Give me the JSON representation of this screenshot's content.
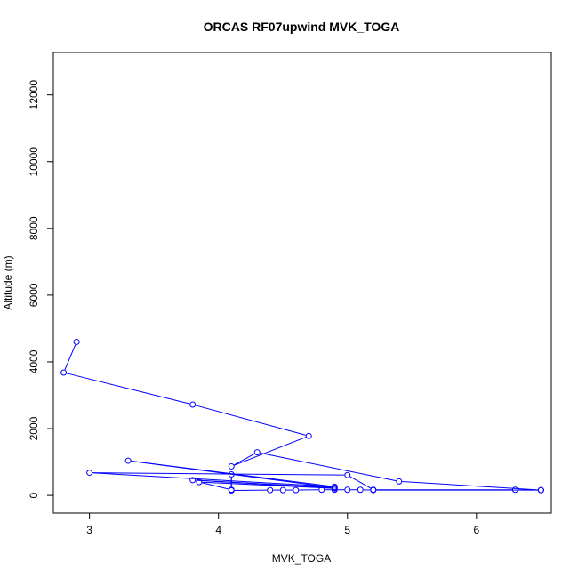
{
  "chart_data": {
    "type": "line",
    "title": "ORCAS RF07upwind MVK_TOGA",
    "xlabel": "MVK_TOGA",
    "ylabel": "Altitude (m)",
    "xlim": [
      2.72,
      6.58
    ],
    "ylim": [
      -530,
      13270
    ],
    "x_ticks": [
      3,
      4,
      5,
      6
    ],
    "y_ticks": [
      0,
      2000,
      4000,
      6000,
      8000,
      10000,
      12000
    ],
    "series": [
      {
        "color": "#0000ff",
        "marker": "open-circle",
        "points": [
          {
            "x": 2.9,
            "y": 4600
          },
          {
            "x": 2.8,
            "y": 3680
          },
          {
            "x": 3.8,
            "y": 2720
          },
          {
            "x": 4.7,
            "y": 1780
          },
          {
            "x": 4.1,
            "y": 870
          },
          {
            "x": 4.3,
            "y": 1290
          },
          {
            "x": 5.4,
            "y": 420
          },
          {
            "x": 6.5,
            "y": 160
          },
          {
            "x": 6.3,
            "y": 170
          },
          {
            "x": 5.2,
            "y": 170
          },
          {
            "x": 5.0,
            "y": 610
          },
          {
            "x": 3.0,
            "y": 680
          },
          {
            "x": 4.9,
            "y": 260
          },
          {
            "x": 3.3,
            "y": 1040
          },
          {
            "x": 4.9,
            "y": 230
          },
          {
            "x": 3.8,
            "y": 460
          },
          {
            "x": 4.9,
            "y": 210
          },
          {
            "x": 3.85,
            "y": 400
          },
          {
            "x": 4.1,
            "y": 170
          },
          {
            "x": 4.1,
            "y": 630
          },
          {
            "x": 4.1,
            "y": 150
          },
          {
            "x": 4.4,
            "y": 160
          },
          {
            "x": 4.5,
            "y": 160
          },
          {
            "x": 4.6,
            "y": 160
          },
          {
            "x": 4.8,
            "y": 170
          },
          {
            "x": 4.9,
            "y": 170
          },
          {
            "x": 5.0,
            "y": 170
          },
          {
            "x": 5.1,
            "y": 170
          },
          {
            "x": 5.2,
            "y": 160
          },
          {
            "x": 6.5,
            "y": 160
          }
        ]
      }
    ]
  }
}
